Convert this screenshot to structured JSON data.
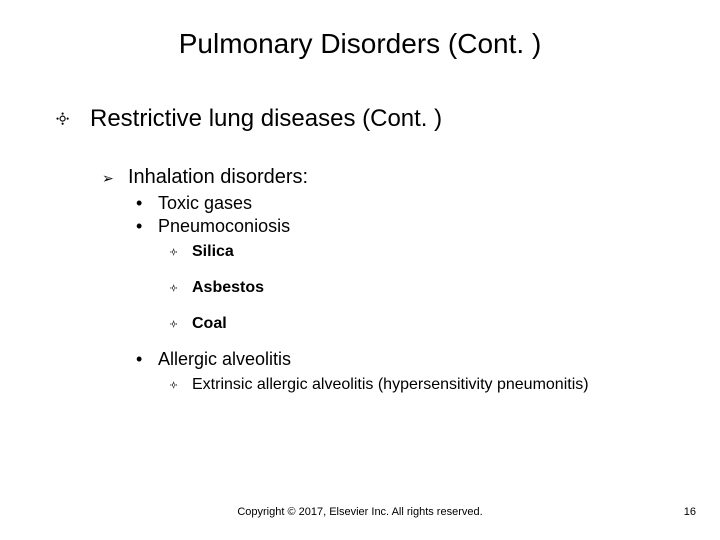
{
  "title": "Pulmonary Disorders (Cont. )",
  "level1": {
    "text": "Restrictive lung diseases (Cont. )"
  },
  "level2": {
    "text": "Inhalation disorders:"
  },
  "bullets3": {
    "a": "Toxic gases",
    "b": "Pneumoconiosis",
    "c": "Allergic alveolitis"
  },
  "bullets4": {
    "a": "Silica",
    "b": "Asbestos",
    "c": "Coal",
    "d": "Extrinsic allergic alveolitis (hypersensitivity pneumonitis)"
  },
  "glyphs": {
    "l1": "༓",
    "l2": "➢",
    "l3": "•",
    "l4": "༓"
  },
  "footer": {
    "copyright": "Copyright © 2017, Elsevier Inc. All rights reserved.",
    "page": "16"
  },
  "colors": {
    "background": "#ffffff",
    "text": "#000000"
  }
}
